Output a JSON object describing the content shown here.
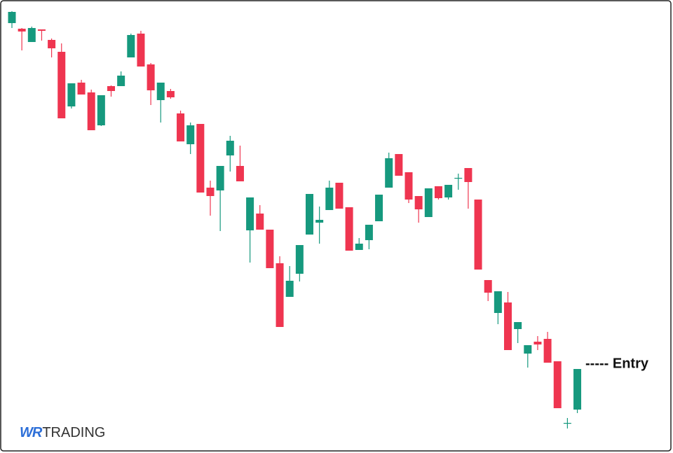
{
  "chart_data": {
    "type": "candlestick",
    "open": [
      617,
      609,
      590,
      608,
      593,
      576,
      498,
      532,
      518,
      471,
      527,
      527,
      568,
      602,
      558,
      507,
      520,
      488,
      444,
      473,
      382,
      378,
      428,
      413,
      321,
      345,
      322,
      274,
      226,
      259,
      315,
      332,
      350,
      389,
      354,
      293,
      307,
      334,
      382,
      430,
      404,
      370,
      340,
      384,
      368,
      395,
      410,
      365,
      250,
      203,
      218,
      180,
      145,
      162,
      166,
      134,
      45,
      65
    ],
    "high": [
      634,
      610,
      612,
      608,
      595,
      588,
      531,
      536,
      522,
      514,
      528,
      548,
      602,
      606,
      560,
      532,
      523,
      492,
      475,
      473,
      392,
      413,
      456,
      442,
      368,
      357,
      322,
      284,
      270,
      300,
      373,
      355,
      392,
      389,
      354,
      310,
      329,
      372,
      432,
      430,
      404,
      370,
      381,
      384,
      386,
      402,
      410,
      365,
      250,
      234,
      233,
      190,
      157,
      170,
      176,
      134,
      53,
      123
    ],
    "low": [
      610,
      578,
      590,
      592,
      568,
      481,
      495,
      515,
      464,
      470,
      512,
      527,
      568,
      555,
      500,
      475,
      509,
      448,
      430,
      375,
      342,
      320,
      405,
      391,
      275,
      322,
      267,
      183,
      226,
      248,
      315,
      302,
      350,
      352,
      292,
      293,
      294,
      334,
      382,
      399,
      360,
      332,
      340,
      365,
      365,
      379,
      352,
      265,
      220,
      187,
      150,
      160,
      125,
      150,
      132,
      67,
      38,
      60
    ],
    "close": [
      633,
      605,
      610,
      606,
      581,
      481,
      531,
      515,
      464,
      514,
      520,
      542,
      600,
      555,
      521,
      532,
      511,
      448,
      471,
      375,
      370,
      413,
      449,
      391,
      368,
      322,
      267,
      183,
      249,
      300,
      373,
      336,
      382,
      352,
      292,
      302,
      329,
      372,
      424,
      399,
      365,
      351,
      381,
      367,
      386,
      396,
      390,
      265,
      232,
      234,
      150,
      190,
      157,
      158,
      132,
      67,
      46,
      123
    ],
    "up_color": "#16997e",
    "down_color": "#ef3550",
    "ylim": [
      3,
      650
    ],
    "annotation": "----- Entry",
    "watermark": {
      "mark": "WR",
      "text": "TRADING"
    }
  }
}
